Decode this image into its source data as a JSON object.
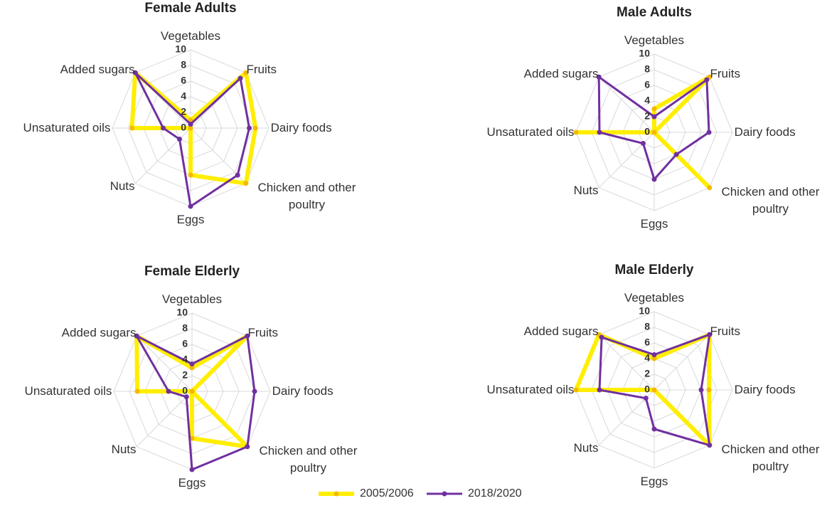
{
  "chart_data": [
    {
      "type": "radar",
      "title": "Female Adults",
      "categories": [
        "Vegetables",
        "Fruits",
        "Dairy foods",
        "Chicken and other poultry",
        "Eggs",
        "Nuts",
        "Unsaturated oils",
        "Added sugars"
      ],
      "rlim": [
        0,
        10
      ],
      "rticks": [
        0,
        2,
        4,
        6,
        8,
        10
      ],
      "series": [
        {
          "name": "2005/2006",
          "color": "#ffee00",
          "marker_color": "#f5b800",
          "values": [
            1,
            10,
            8.3,
            10,
            6,
            0,
            7.5,
            10
          ]
        },
        {
          "name": "2018/2020",
          "color": "#7030a0",
          "marker_color": "#7030a0",
          "values": [
            0.5,
            9,
            7.5,
            8.5,
            10,
            2,
            3.5,
            10
          ]
        }
      ]
    },
    {
      "type": "radar",
      "title": "Male Adults",
      "categories": [
        "Vegetables",
        "Fruits",
        "Dairy foods",
        "Chicken and other poultry",
        "Eggs",
        "Nuts",
        "Unsaturated oils",
        "Added sugars"
      ],
      "rlim": [
        0,
        10
      ],
      "rticks": [
        0,
        2,
        4,
        6,
        8,
        10
      ],
      "series": [
        {
          "color": "#ffee00",
          "marker_color": "#f5b800",
          "values": [
            3,
            10,
            0,
            10,
            0,
            0,
            10,
            0
          ]
        },
        {
          "color": "#7030a0",
          "marker_color": "#7030a0",
          "values": [
            2,
            9.5,
            7,
            4,
            6,
            2,
            7,
            10
          ]
        }
      ]
    },
    {
      "type": "radar",
      "title": "Female Elderly",
      "categories": [
        "Vegetables",
        "Fruits",
        "Dairy foods",
        "Chicken and other poultry",
        "Eggs",
        "Nuts",
        "Unsaturated oils",
        "Added sugars"
      ],
      "rlim": [
        0,
        10
      ],
      "rticks": [
        0,
        2,
        4,
        6,
        8,
        10
      ],
      "series": [
        {
          "color": "#ffee00",
          "marker_color": "#f5b800",
          "values": [
            3,
            10,
            0,
            10,
            6,
            0,
            7,
            10
          ]
        },
        {
          "color": "#7030a0",
          "marker_color": "#7030a0",
          "values": [
            3.5,
            10,
            8,
            10,
            10,
            1,
            3,
            10
          ]
        }
      ]
    },
    {
      "type": "radar",
      "title": "Male Elderly",
      "categories": [
        "Vegetables",
        "Fruits",
        "Dairy foods",
        "Chicken and other poultry",
        "Eggs",
        "Nuts",
        "Unsaturated oils",
        "Added sugars"
      ],
      "rlim": [
        0,
        10
      ],
      "rticks": [
        0,
        2,
        4,
        6,
        8,
        10
      ],
      "series": [
        {
          "color": "#ffee00",
          "marker_color": "#f5b800",
          "values": [
            4,
            10,
            7,
            10,
            0,
            0,
            10,
            10
          ]
        },
        {
          "color": "#7030a0",
          "marker_color": "#7030a0",
          "values": [
            4.5,
            10,
            6,
            10,
            5,
            1.5,
            7,
            9.5
          ]
        }
      ]
    }
  ]
}
